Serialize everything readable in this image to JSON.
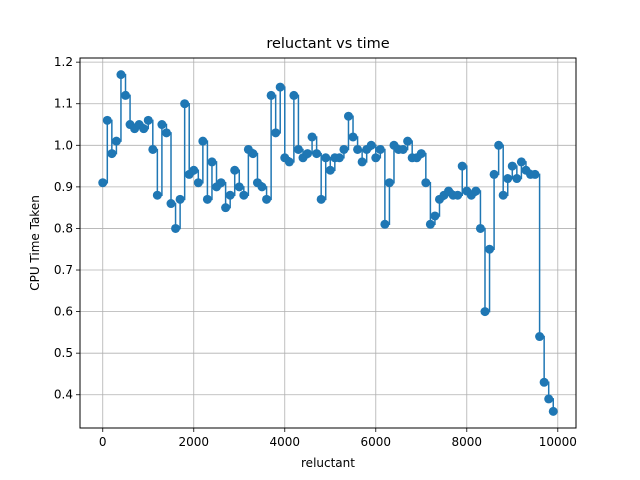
{
  "chart_data": {
    "type": "line",
    "style": "step-post with markers",
    "title": "reluctant vs time",
    "xlabel": "reluctant",
    "ylabel": "CPU Time Taken",
    "xlim": [
      -500,
      10400
    ],
    "ylim": [
      0.32,
      1.21
    ],
    "xticks": [
      0,
      2000,
      4000,
      6000,
      8000,
      10000
    ],
    "yticks": [
      0.4,
      0.5,
      0.6,
      0.7,
      0.8,
      0.9,
      1.0,
      1.1,
      1.2
    ],
    "xtick_labels": [
      "0",
      "2000",
      "4000",
      "6000",
      "8000",
      "10000"
    ],
    "ytick_labels": [
      "0.4",
      "0.5",
      "0.6",
      "0.7",
      "0.8",
      "0.9",
      "1.0",
      "1.1",
      "1.2"
    ],
    "grid": true,
    "color": "#1f77b4",
    "series": [
      {
        "x": [
          0,
          100,
          200,
          300,
          400,
          500,
          600,
          700,
          800,
          900,
          1000,
          1100,
          1200,
          1300,
          1400,
          1500,
          1600,
          1700,
          1800,
          1900,
          2000,
          2100,
          2200,
          2300,
          2400,
          2500,
          2600,
          2700,
          2800,
          2900,
          3000,
          3100,
          3200,
          3300,
          3400,
          3500,
          3600,
          3700,
          3800,
          3900,
          4000,
          4100,
          4200,
          4300,
          4400,
          4500,
          4600,
          4700,
          4800,
          4900,
          5000,
          5100,
          5200,
          5300,
          5400,
          5500,
          5600,
          5700,
          5800,
          5900,
          6000,
          6100,
          6200,
          6300,
          6400,
          6500,
          6600,
          6700,
          6800,
          6900,
          7000,
          7100,
          7200,
          7300,
          7400,
          7500,
          7600,
          7700,
          7800,
          7900,
          8000,
          8100,
          8200,
          8300,
          8400,
          8500,
          8600,
          8700,
          8800,
          8900,
          9000,
          9100,
          9200,
          9300,
          9400,
          9500,
          9600,
          9700,
          9800,
          9900
        ],
        "y": [
          0.91,
          1.06,
          0.98,
          1.01,
          1.17,
          1.12,
          1.05,
          1.04,
          1.05,
          1.04,
          1.06,
          0.99,
          0.88,
          1.05,
          1.03,
          0.86,
          0.8,
          0.87,
          1.1,
          0.93,
          0.94,
          0.91,
          1.01,
          0.87,
          0.96,
          0.9,
          0.91,
          0.85,
          0.88,
          0.94,
          0.9,
          0.88,
          0.99,
          0.98,
          0.91,
          0.9,
          0.87,
          1.12,
          1.03,
          1.14,
          0.97,
          0.96,
          1.12,
          0.99,
          0.97,
          0.98,
          1.02,
          0.98,
          0.87,
          0.97,
          0.94,
          0.97,
          0.97,
          0.99,
          1.07,
          1.02,
          0.99,
          0.96,
          0.99,
          1.0,
          0.97,
          0.99,
          0.81,
          0.91,
          1.0,
          0.99,
          0.99,
          1.01,
          0.97,
          0.97,
          0.98,
          0.91,
          0.81,
          0.83,
          0.87,
          0.88,
          0.89,
          0.88,
          0.88,
          0.95,
          0.89,
          0.88,
          0.89,
          0.8,
          0.6,
          0.75,
          0.93,
          1.0,
          0.88,
          0.92,
          0.95,
          0.92,
          0.96,
          0.94,
          0.93,
          0.93,
          0.54,
          0.43,
          0.39,
          0.36
        ]
      }
    ]
  }
}
